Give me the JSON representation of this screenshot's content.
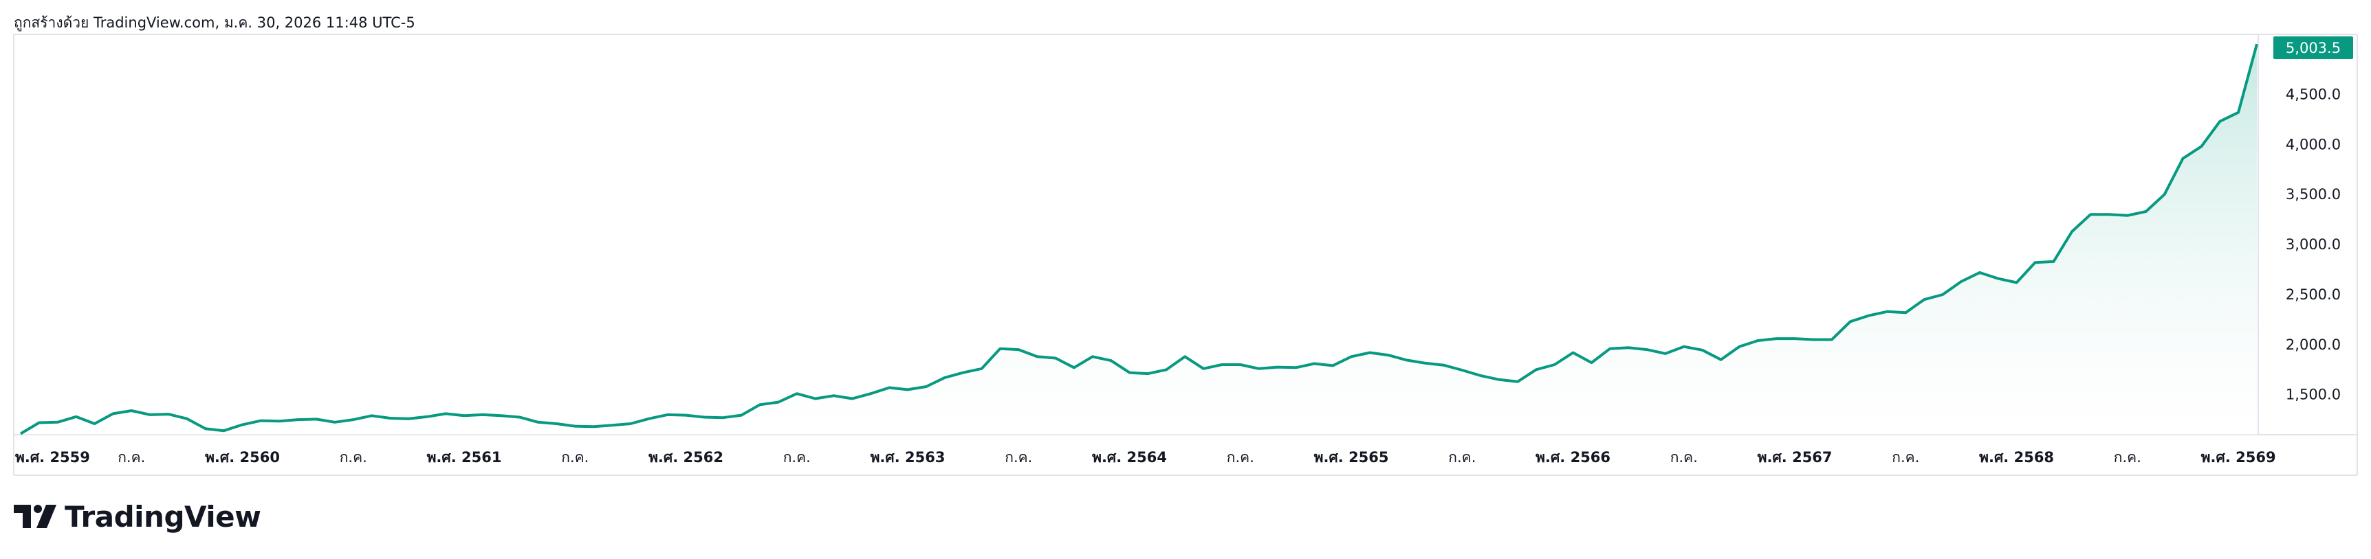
{
  "attribution": "ถูกสร้างด้วย TradingView.com, ม.ค. 30, 2026 11:48 UTC-5",
  "brand": {
    "name": "TradingView",
    "logo_icon": "tradingview-logo-icon"
  },
  "colors": {
    "line": "#089981",
    "label_bg": "#089981",
    "area_top": "#bfe6df",
    "area_bottom": "#ffffff"
  },
  "chart_data": {
    "type": "area",
    "title": "",
    "xlabel": "",
    "ylabel": "",
    "last_value_label": "5,003.5",
    "last_value": 5003.5,
    "ylim": [
      1100,
      5100
    ],
    "y_ticks": [
      {
        "value": 1500,
        "label": "1,500.0"
      },
      {
        "value": 2000,
        "label": "2,000.0"
      },
      {
        "value": 2500,
        "label": "2,500.0"
      },
      {
        "value": 3000,
        "label": "3,000.0"
      },
      {
        "value": 3500,
        "label": "3,500.0"
      },
      {
        "value": 4000,
        "label": "4,000.0"
      },
      {
        "value": 4500,
        "label": "4,500.0"
      }
    ],
    "x_ticks": [
      {
        "index": 0,
        "label": "พ.ศ. 2559",
        "bold": true
      },
      {
        "index": 6,
        "label": "ก.ค.",
        "bold": false
      },
      {
        "index": 12,
        "label": "พ.ศ. 2560",
        "bold": true
      },
      {
        "index": 18,
        "label": "ก.ค.",
        "bold": false
      },
      {
        "index": 24,
        "label": "พ.ศ. 2561",
        "bold": true
      },
      {
        "index": 30,
        "label": "ก.ค.",
        "bold": false
      },
      {
        "index": 36,
        "label": "พ.ศ. 2562",
        "bold": true
      },
      {
        "index": 42,
        "label": "ก.ค.",
        "bold": false
      },
      {
        "index": 48,
        "label": "พ.ศ. 2563",
        "bold": true
      },
      {
        "index": 54,
        "label": "ก.ค.",
        "bold": false
      },
      {
        "index": 60,
        "label": "พ.ศ. 2564",
        "bold": true
      },
      {
        "index": 66,
        "label": "ก.ค.",
        "bold": false
      },
      {
        "index": 72,
        "label": "พ.ศ. 2565",
        "bold": true
      },
      {
        "index": 78,
        "label": "ก.ค.",
        "bold": false
      },
      {
        "index": 84,
        "label": "พ.ศ. 2566",
        "bold": true
      },
      {
        "index": 90,
        "label": "ก.ค.",
        "bold": false
      },
      {
        "index": 96,
        "label": "พ.ศ. 2567",
        "bold": true
      },
      {
        "index": 102,
        "label": "ก.ค.",
        "bold": false
      },
      {
        "index": 108,
        "label": "พ.ศ. 2568",
        "bold": true
      },
      {
        "index": 114,
        "label": "ก.ค.",
        "bold": false
      },
      {
        "index": 120,
        "label": "พ.ศ. 2569",
        "bold": true
      }
    ],
    "series": [
      {
        "values": [
          1110,
          1220,
          1225,
          1280,
          1210,
          1310,
          1340,
          1300,
          1305,
          1260,
          1160,
          1140,
          1200,
          1240,
          1235,
          1250,
          1255,
          1225,
          1250,
          1290,
          1265,
          1260,
          1280,
          1310,
          1290,
          1300,
          1290,
          1275,
          1225,
          1210,
          1185,
          1180,
          1195,
          1210,
          1260,
          1300,
          1295,
          1275,
          1270,
          1295,
          1400,
          1425,
          1510,
          1460,
          1490,
          1460,
          1510,
          1570,
          1550,
          1580,
          1670,
          1720,
          1760,
          1960,
          1950,
          1880,
          1865,
          1770,
          1880,
          1840,
          1720,
          1710,
          1750,
          1880,
          1760,
          1800,
          1800,
          1760,
          1775,
          1770,
          1810,
          1790,
          1880,
          1920,
          1895,
          1845,
          1815,
          1795,
          1745,
          1690,
          1650,
          1630,
          1750,
          1800,
          1920,
          1820,
          1960,
          1970,
          1950,
          1910,
          1980,
          1945,
          1850,
          1980,
          2040,
          2060,
          2060,
          2050,
          2050,
          2230,
          2290,
          2330,
          2320,
          2450,
          2500,
          2630,
          2720,
          2660,
          2620,
          2820,
          2830,
          3130,
          3300,
          3300,
          3290,
          3330,
          3500,
          3860,
          3980,
          4230,
          4320,
          5003.5
        ]
      }
    ]
  }
}
